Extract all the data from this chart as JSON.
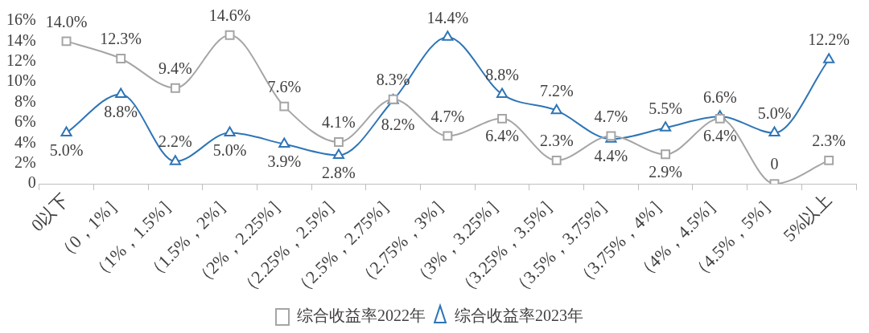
{
  "chart_data": {
    "type": "line",
    "categories": [
      "0以下",
      "（0，1%］",
      "（1%，1.5%］",
      "（1.5%，2%］",
      "（2%，2.25%］",
      "（2.25%，2.5%］",
      "（2.5%，2.75%］",
      "（2.75%，3%］",
      "（3%，3.25%］",
      "（3.25%，3.5%］",
      "（3.5%，3.75%］",
      "（3.75%，4%］",
      "（4%，4.5%］",
      "（4.5%，5%］",
      "5%以上"
    ],
    "series": [
      {
        "name": "综合收益率2022年",
        "color": "#a5a5a5",
        "marker": "square",
        "values": [
          14.0,
          12.3,
          9.4,
          14.6,
          7.6,
          4.1,
          8.3,
          4.7,
          6.4,
          2.3,
          4.7,
          2.9,
          6.4,
          0,
          2.3
        ],
        "value_labels": [
          "14.0%",
          "12.3%",
          "9.4%",
          "14.6%",
          "7.6%",
          "4.1%",
          "8.3%",
          "4.7%",
          "6.4%",
          "2.3%",
          "4.7%",
          "2.9%",
          "6.4%",
          "0",
          "2.3%"
        ]
      },
      {
        "name": "综合收益率2023年",
        "color": "#2e75b6",
        "marker": "triangle",
        "values": [
          5.0,
          8.8,
          2.2,
          5.0,
          3.9,
          2.8,
          8.2,
          14.4,
          8.8,
          7.2,
          4.4,
          5.5,
          6.6,
          5.0,
          12.2
        ],
        "value_labels": [
          "5.0%",
          "8.8%",
          "2.2%",
          "5.0%",
          "3.9%",
          "2.8%",
          "8.2%",
          "14.4%",
          "8.8%",
          "7.2%",
          "4.4%",
          "5.5%",
          "6.6%",
          "5.0%",
          "12.2%"
        ]
      }
    ],
    "ylim": [
      0,
      16
    ],
    "yticks": [
      0,
      {
        "value": 2,
        "label": "2%"
      },
      {
        "value": 4,
        "label": "4%"
      },
      {
        "value": 6,
        "label": "6%"
      },
      {
        "value": 8,
        "label": "8%"
      },
      {
        "value": 10,
        "label": "10%"
      },
      {
        "value": 12,
        "label": "12%"
      },
      {
        "value": 14,
        "label": "14%"
      },
      {
        "value": 16,
        "label": "16%"
      }
    ],
    "legend": "bottom",
    "line_style": "solid"
  }
}
